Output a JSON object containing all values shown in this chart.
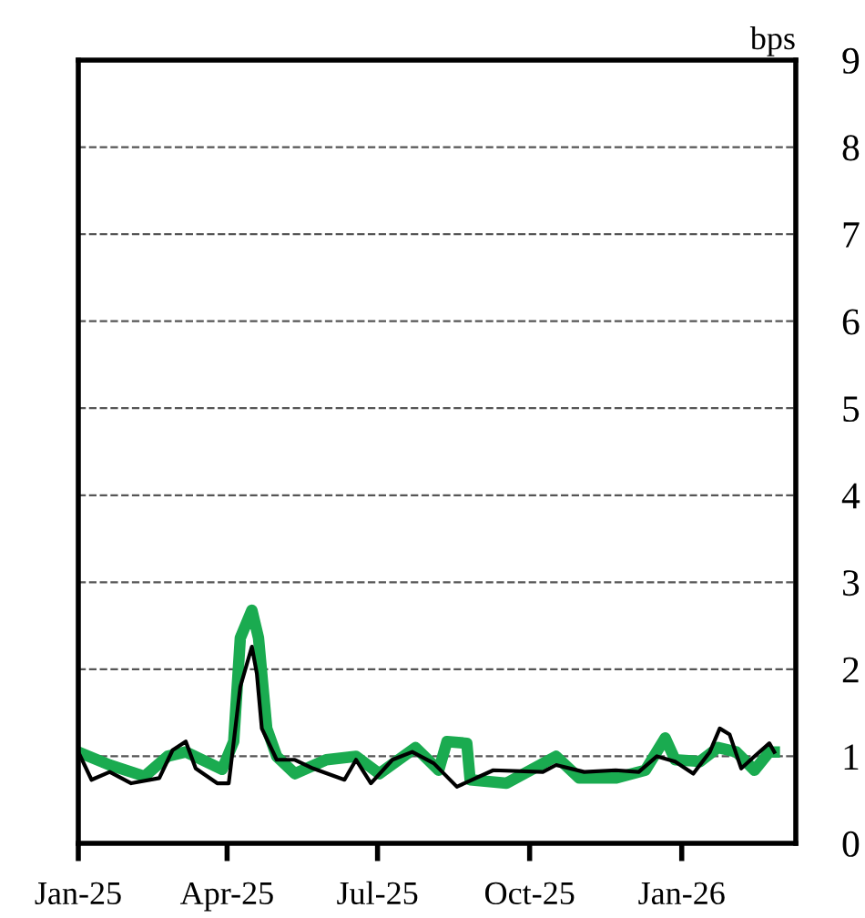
{
  "chart_data": {
    "type": "line",
    "ylabel": "bps",
    "xlim": [
      "2025-01-01",
      "2026-03-11"
    ],
    "ylim": [
      0,
      9
    ],
    "yticks": [
      0,
      1,
      2,
      3,
      4,
      5,
      6,
      7,
      8,
      9
    ],
    "xticks": [
      {
        "value": "2025-01-01",
        "label": "Jan-25"
      },
      {
        "value": "2025-04-01",
        "label": "Apr-25"
      },
      {
        "value": "2025-07-01",
        "label": "Jul-25"
      },
      {
        "value": "2025-10-01",
        "label": "Oct-25"
      },
      {
        "value": "2026-01-01",
        "label": "Jan-26"
      }
    ],
    "grid": "y",
    "legend": false,
    "line_style": "solid",
    "marker": "none",
    "series": [
      {
        "color": "#1aab50",
        "x": [
          "2025-01-01",
          "2025-01-20",
          "2025-02-10",
          "2025-02-24",
          "2025-03-07",
          "2025-03-29",
          "2025-04-05",
          "2025-04-09",
          "2025-04-16",
          "2025-04-20",
          "2025-04-25",
          "2025-05-01",
          "2025-05-12",
          "2025-05-31",
          "2025-06-18",
          "2025-07-02",
          "2025-07-24",
          "2025-08-07",
          "2025-08-12",
          "2025-08-24",
          "2025-08-26",
          "2025-09-17",
          "2025-10-17",
          "2025-10-31",
          "2025-11-22",
          "2025-12-10",
          "2025-12-22",
          "2025-12-28",
          "2026-01-12",
          "2026-01-23",
          "2026-02-03",
          "2026-02-14",
          "2026-02-23",
          "2026-02-26"
        ],
        "values": [
          1.05,
          0.9,
          0.77,
          1.0,
          1.05,
          0.85,
          1.17,
          2.36,
          2.68,
          2.36,
          1.32,
          1.0,
          0.8,
          0.96,
          1.0,
          0.8,
          1.1,
          0.84,
          1.17,
          1.15,
          0.73,
          0.69,
          1.0,
          0.75,
          0.75,
          0.84,
          1.21,
          0.96,
          0.94,
          1.1,
          1.05,
          0.84,
          1.05,
          1.05
        ]
      },
      {
        "color": "#000000",
        "x": [
          "2025-01-01",
          "2025-01-09",
          "2025-01-20",
          "2025-02-02",
          "2025-02-19",
          "2025-02-27",
          "2025-03-07",
          "2025-03-13",
          "2025-03-26",
          "2025-04-02",
          "2025-04-09",
          "2025-04-16",
          "2025-04-19",
          "2025-04-22",
          "2025-05-01",
          "2025-05-12",
          "2025-05-23",
          "2025-06-11",
          "2025-06-18",
          "2025-06-27",
          "2025-07-10",
          "2025-07-22",
          "2025-08-04",
          "2025-08-18",
          "2025-09-09",
          "2025-10-09",
          "2025-10-17",
          "2025-11-03",
          "2025-11-22",
          "2025-12-06",
          "2025-12-17",
          "2025-12-28",
          "2026-01-08",
          "2026-01-18",
          "2026-01-24",
          "2026-01-30",
          "2026-02-06",
          "2026-02-14",
          "2026-02-23",
          "2026-02-26"
        ],
        "values": [
          1.05,
          0.73,
          0.82,
          0.69,
          0.75,
          1.07,
          1.17,
          0.86,
          0.69,
          0.69,
          1.8,
          2.26,
          1.95,
          1.32,
          0.96,
          0.96,
          0.86,
          0.73,
          0.96,
          0.69,
          0.96,
          1.05,
          0.92,
          0.65,
          0.84,
          0.82,
          0.9,
          0.82,
          0.84,
          0.82,
          1.0,
          0.94,
          0.8,
          1.05,
          1.32,
          1.25,
          0.86,
          1.0,
          1.15,
          1.05
        ]
      }
    ]
  }
}
